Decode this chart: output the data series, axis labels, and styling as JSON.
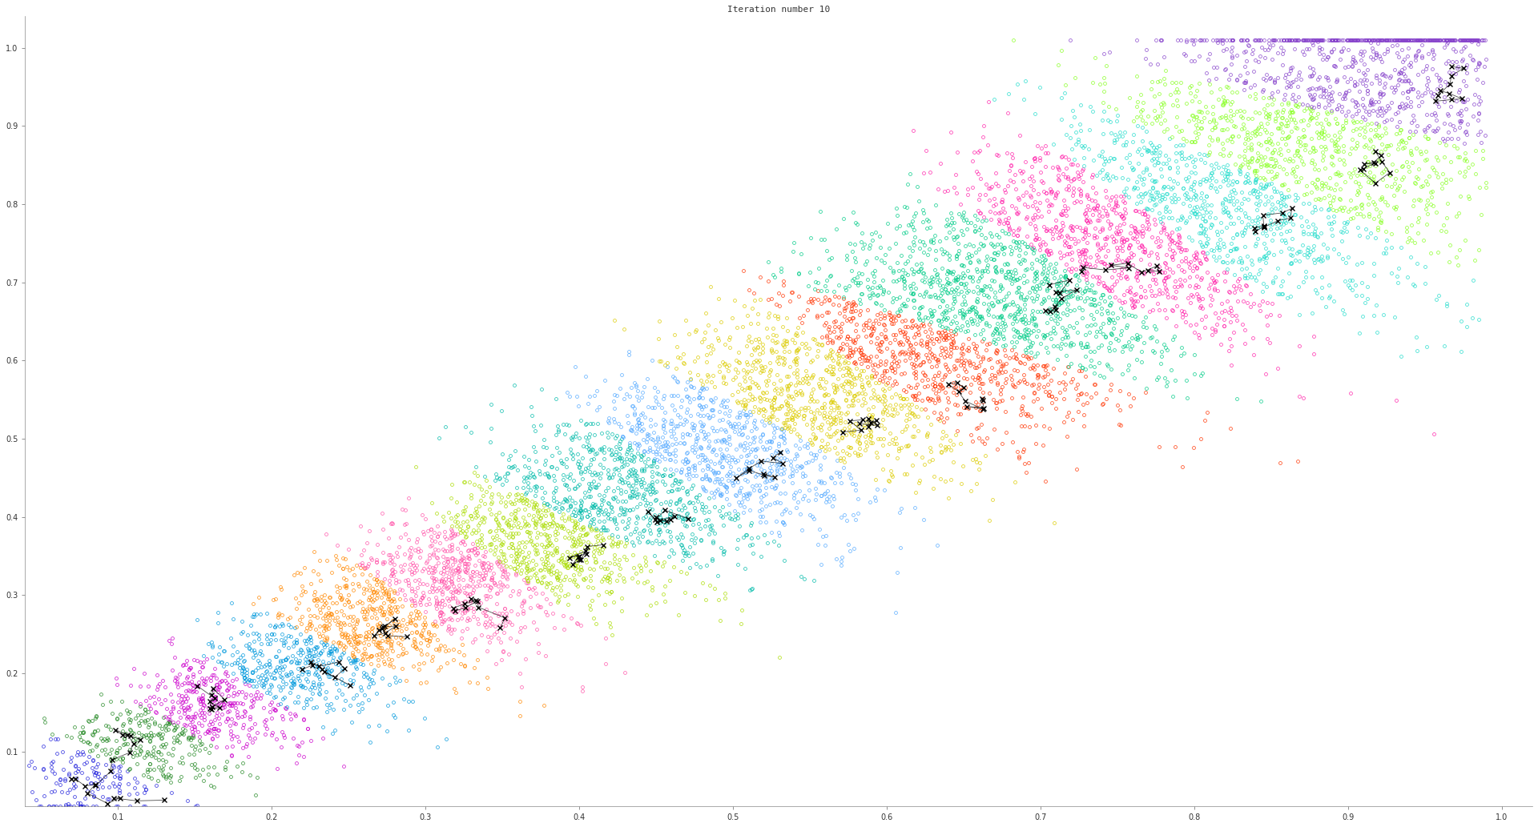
{
  "title": "Iteration number 10",
  "title_fontsize": 8,
  "xlim": [
    0.04,
    1.02
  ],
  "ylim": [
    0.03,
    1.04
  ],
  "xticks": [
    0.1,
    0.2,
    0.3,
    0.4,
    0.5,
    0.6,
    0.7,
    0.8,
    0.9,
    1.0
  ],
  "yticks": [
    0.1,
    0.2,
    0.3,
    0.4,
    0.5,
    0.6,
    0.7,
    0.8,
    0.9,
    1.0
  ],
  "n_clusters": 16,
  "n_points": 10000,
  "background_color": "#FFFFFF",
  "point_size": 5,
  "cluster_colors": [
    "#2222DD",
    "#228822",
    "#CC00CC",
    "#0099DD",
    "#FF8800",
    "#FF55AA",
    "#AADD00",
    "#00BBAA",
    "#55AAFF",
    "#DDCC00",
    "#FF3300",
    "#00CC88",
    "#FF22AA",
    "#22DDCC",
    "#88FF22",
    "#8844CC"
  ],
  "centroids": [
    [
      0.07,
      0.065
    ],
    [
      0.115,
      0.115
    ],
    [
      0.16,
      0.155
    ],
    [
      0.22,
      0.205
    ],
    [
      0.27,
      0.255
    ],
    [
      0.33,
      0.295
    ],
    [
      0.4,
      0.345
    ],
    [
      0.45,
      0.4
    ],
    [
      0.52,
      0.455
    ],
    [
      0.59,
      0.52
    ],
    [
      0.65,
      0.565
    ],
    [
      0.71,
      0.665
    ],
    [
      0.77,
      0.715
    ],
    [
      0.84,
      0.765
    ],
    [
      0.91,
      0.845
    ],
    [
      0.96,
      0.945
    ]
  ],
  "seed_data": 42,
  "seed_traj": 99
}
